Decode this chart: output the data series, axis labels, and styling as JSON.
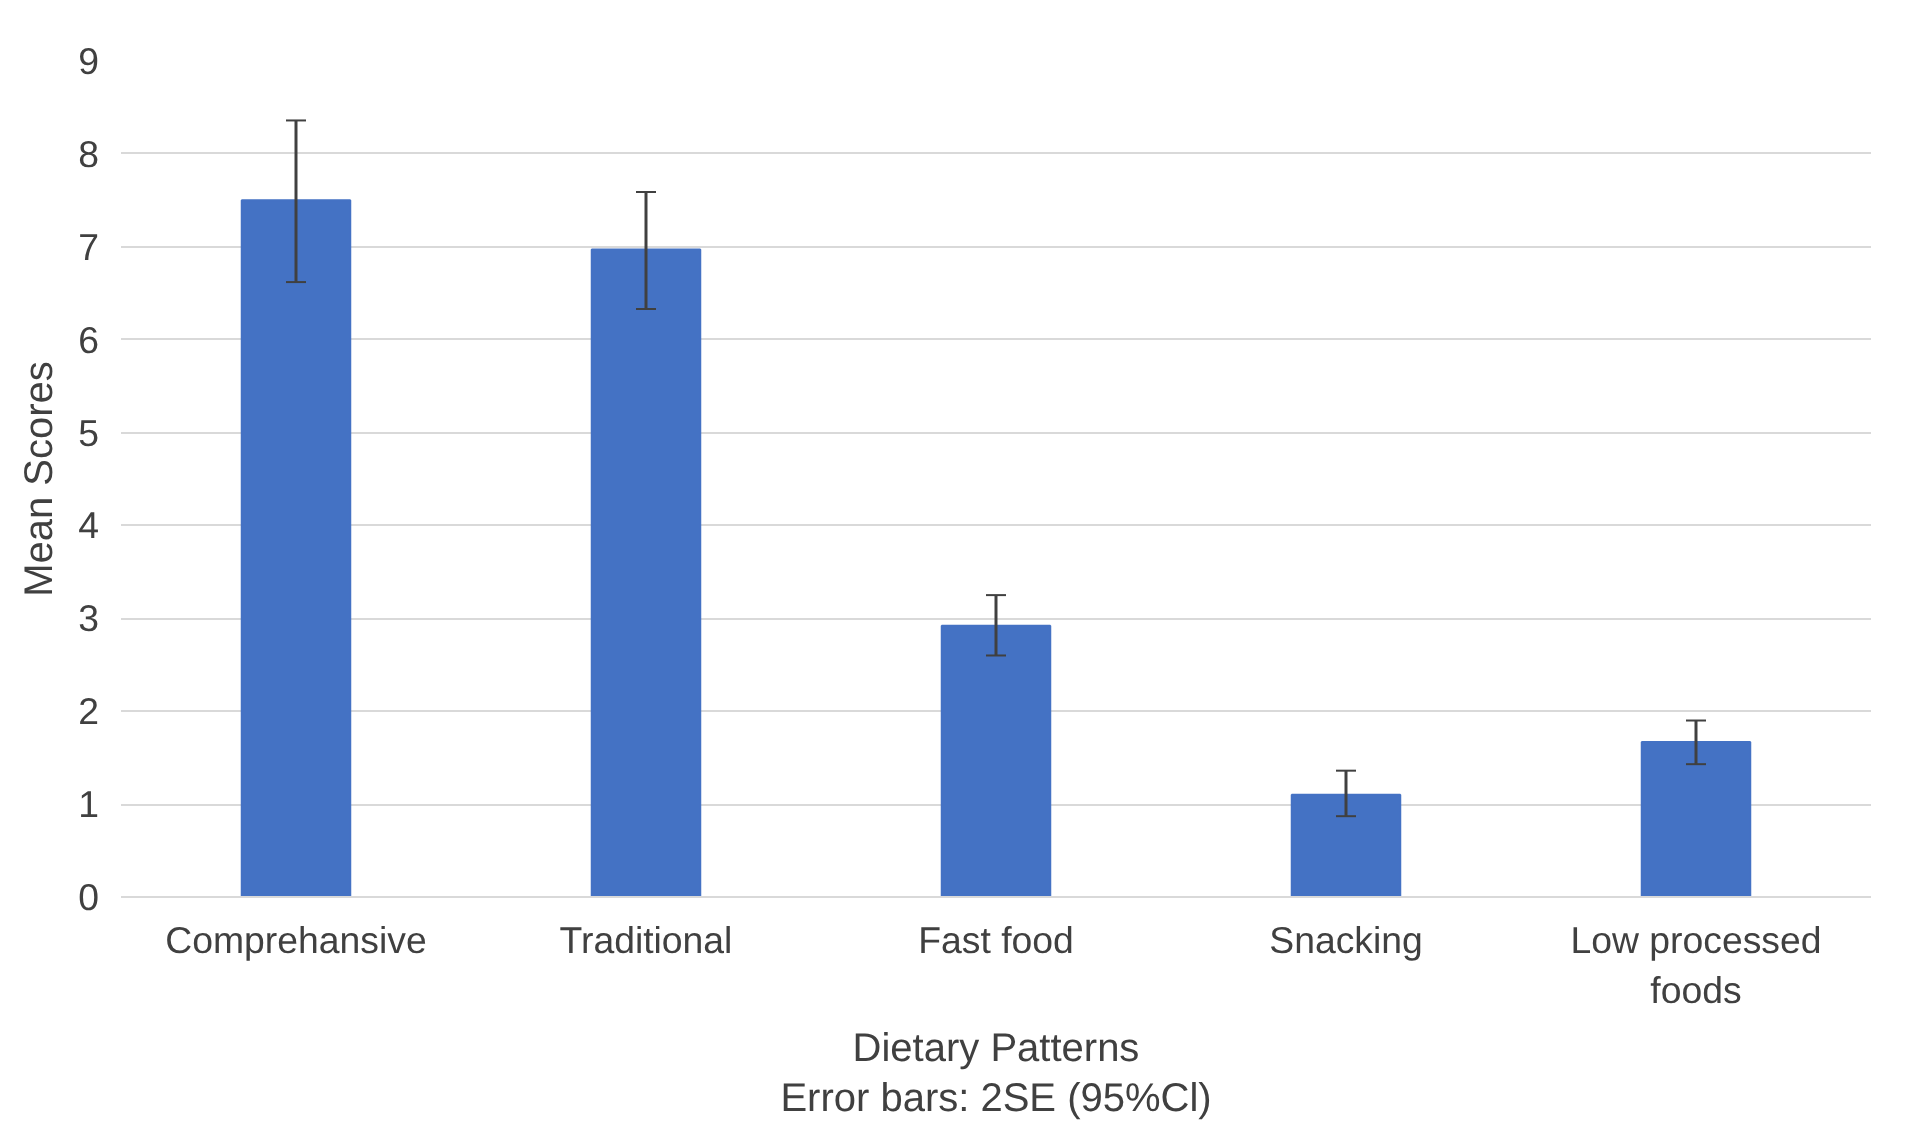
{
  "chart_data": {
    "type": "bar",
    "xlabel": "Dietary Patterns",
    "ylabel": "Mean Scores",
    "annotations": [
      "Error bars: 2SE (95%Cl)"
    ],
    "categories": [
      "Comprehansive",
      "Traditional",
      "Fast food",
      "Snacking",
      "Low processed foods"
    ],
    "values": [
      7.5,
      6.97,
      2.92,
      1.1,
      1.67
    ],
    "errors": [
      [
        6.62,
        8.36
      ],
      [
        6.33,
        7.59
      ],
      [
        2.6,
        3.25
      ],
      [
        0.87,
        1.36
      ],
      [
        1.43,
        1.9
      ]
    ],
    "color": "#4472c4",
    "ylim": [
      0,
      9
    ],
    "yticks": [
      0,
      1,
      2,
      3,
      4,
      5,
      6,
      7,
      8,
      9
    ],
    "grid": "y"
  }
}
